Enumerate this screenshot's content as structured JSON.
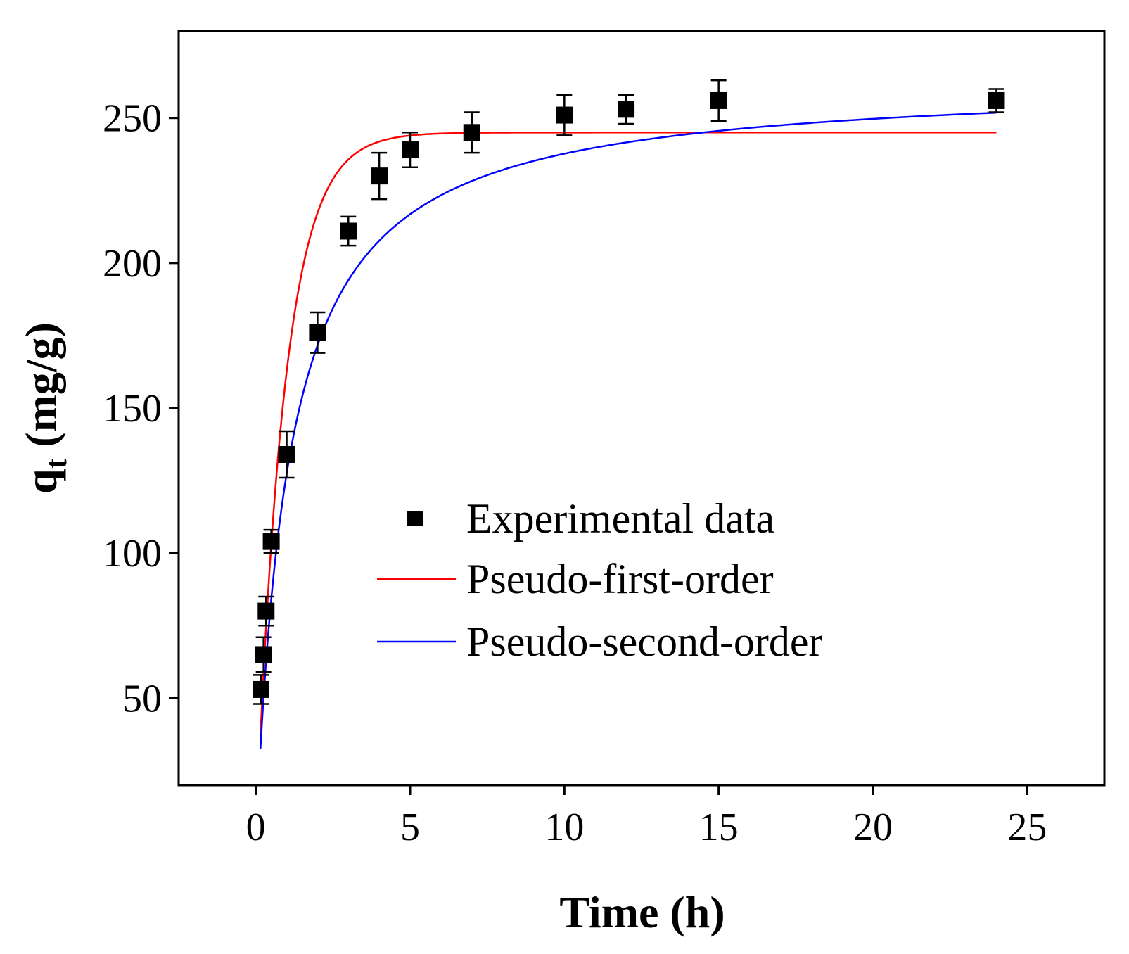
{
  "chart_data": {
    "type": "scatter",
    "title": "",
    "xlabel": "Time (h)",
    "ylabel_main": "q",
    "ylabel_sub": "t",
    "ylabel_rest": " (mg/g)",
    "xlim": [
      -2.5,
      27.5
    ],
    "ylim": [
      20,
      280
    ],
    "xticks": [
      0,
      5,
      10,
      15,
      20,
      25
    ],
    "yticks": [
      50,
      100,
      150,
      200,
      250
    ],
    "colors": {
      "experimental": "#000000",
      "first_order": "#ff0000",
      "second_order": "#0000ff"
    },
    "series": [
      {
        "name": "Experimental data",
        "kind": "points",
        "x": [
          0.167,
          0.25,
          0.333,
          0.5,
          1,
          2,
          3,
          4,
          5,
          7,
          10,
          12,
          15,
          24
        ],
        "y": [
          53,
          65,
          80,
          104,
          134,
          176,
          211,
          230,
          239,
          245,
          251,
          253,
          256,
          256
        ],
        "err": [
          5,
          6,
          5,
          4,
          8,
          7,
          5,
          8,
          6,
          7,
          7,
          5,
          7,
          4
        ]
      },
      {
        "name": "Pseudo-first-order",
        "kind": "line",
        "qe": 245,
        "k": 1.09,
        "x_start": 0.15,
        "x_end": 24
      },
      {
        "name": "Pseudo-second-order",
        "kind": "line",
        "qe": 263,
        "k": 0.00357,
        "x_start": 0.15,
        "x_end": 24
      }
    ],
    "legend": [
      "Experimental data",
      "Pseudo-first-order",
      "Pseudo-second-order"
    ],
    "legend_position": "center-right"
  }
}
